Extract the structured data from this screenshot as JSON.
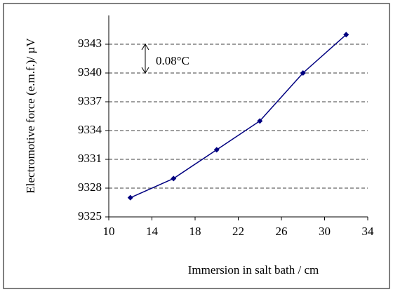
{
  "chart_data": {
    "type": "line",
    "x_label": "Immersion in salt bath  / cm",
    "y_label": "Electromotive force (e.m.f.)/  µV",
    "annotation": "0.08°C",
    "x": [
      12,
      16,
      20,
      24,
      28,
      32
    ],
    "series": [
      {
        "name": "emf",
        "color": "#000080",
        "values": [
          9327,
          9329,
          9332,
          9335,
          9340,
          9344
        ]
      }
    ],
    "xlim": [
      10,
      34
    ],
    "xticks": [
      10,
      14,
      18,
      22,
      26,
      30,
      34
    ],
    "ylim": [
      9325,
      9346
    ],
    "yticks": [
      9325,
      9328,
      9331,
      9334,
      9337,
      9340,
      9343
    ],
    "grid": true,
    "legend": false
  }
}
